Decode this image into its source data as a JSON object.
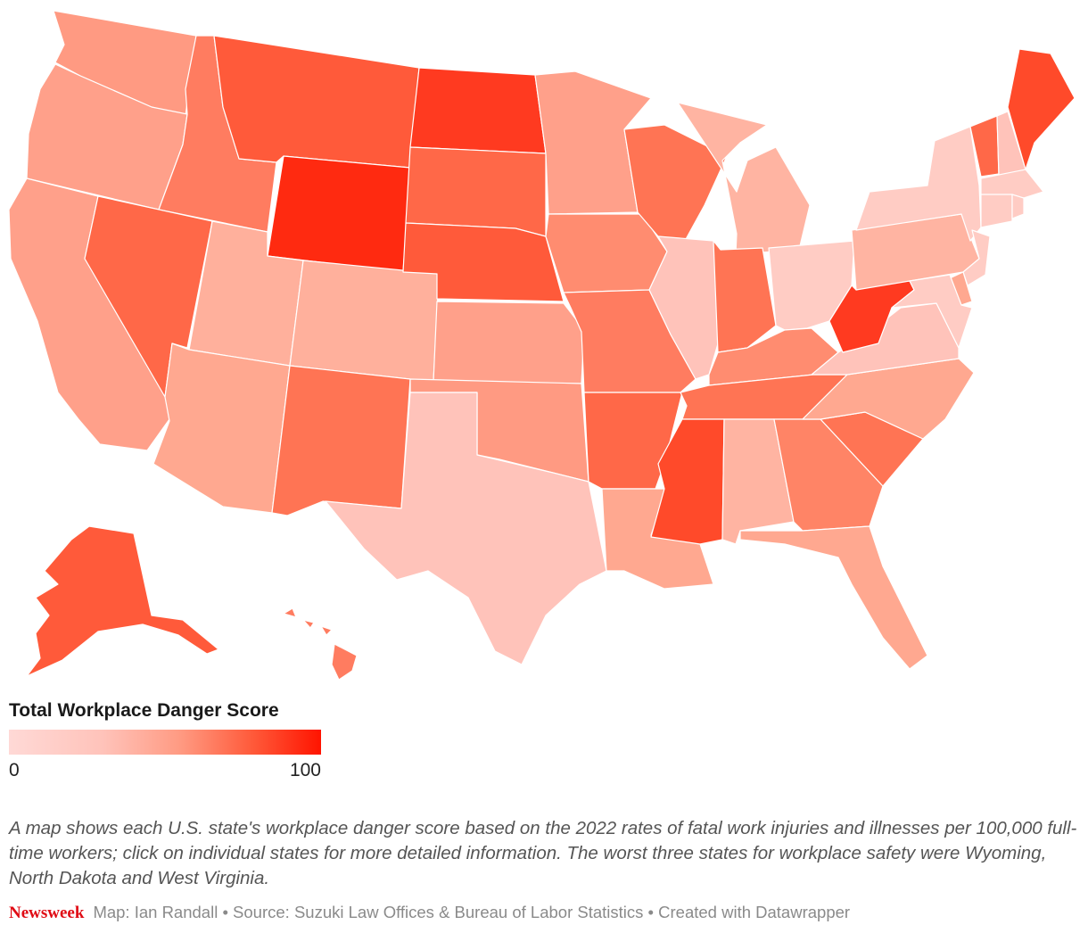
{
  "legend": {
    "title": "Total Workplace Danger Score",
    "min_label": "0",
    "max_label": "100",
    "low_color": "#ffd9d6",
    "high_color": "#ff1400"
  },
  "caption": "A map shows each U.S. state's workplace danger score based on the 2022 rates of fatal work injuries and illnesses per 100,000 full-time workers; click on individual states for more detailed information. The worst three states for workplace safety were Wyoming, North Dakota and West Virginia.",
  "footer": {
    "brand": "Newsweek",
    "credits": "Map: Ian Randall • Source: Suzuki Law Offices & Bureau of Labor Statistics • Created with Datawrapper"
  },
  "states": [
    {
      "id": "WA",
      "color": "#ff9a82"
    },
    {
      "id": "OR",
      "color": "#ffa08a"
    },
    {
      "id": "CA",
      "color": "#ffa08a"
    },
    {
      "id": "ID",
      "color": "#ff7c60"
    },
    {
      "id": "NV",
      "color": "#ff6848"
    },
    {
      "id": "MT",
      "color": "#ff5a3a"
    },
    {
      "id": "WY",
      "color": "#ff2a10"
    },
    {
      "id": "UT",
      "color": "#ffb09c"
    },
    {
      "id": "AZ",
      "color": "#ffa890"
    },
    {
      "id": "CO",
      "color": "#ffb09c"
    },
    {
      "id": "NM",
      "color": "#ff7454"
    },
    {
      "id": "ND",
      "color": "#ff3a20"
    },
    {
      "id": "SD",
      "color": "#ff6848"
    },
    {
      "id": "NE",
      "color": "#ff5a3a"
    },
    {
      "id": "KS",
      "color": "#ffa08a"
    },
    {
      "id": "OK",
      "color": "#ff9a82"
    },
    {
      "id": "TX",
      "color": "#ffc3ba"
    },
    {
      "id": "MN",
      "color": "#ffa08a"
    },
    {
      "id": "IA",
      "color": "#ff8c70"
    },
    {
      "id": "MO",
      "color": "#ff7c60"
    },
    {
      "id": "AR",
      "color": "#ff6848"
    },
    {
      "id": "LA",
      "color": "#ffa890"
    },
    {
      "id": "WI",
      "color": "#ff7454"
    },
    {
      "id": "IL",
      "color": "#ffc3ba"
    },
    {
      "id": "MI",
      "color": "#ffb4a2"
    },
    {
      "id": "IN",
      "color": "#ff7454"
    },
    {
      "id": "OH",
      "color": "#ffccc4"
    },
    {
      "id": "KY",
      "color": "#ff8c70"
    },
    {
      "id": "TN",
      "color": "#ff7454"
    },
    {
      "id": "MS",
      "color": "#ff4a2a"
    },
    {
      "id": "AL",
      "color": "#ffb4a2"
    },
    {
      "id": "GA",
      "color": "#ff8466"
    },
    {
      "id": "FL",
      "color": "#ffa890"
    },
    {
      "id": "SC",
      "color": "#ff7454"
    },
    {
      "id": "NC",
      "color": "#ffa890"
    },
    {
      "id": "VA",
      "color": "#ffc3ba"
    },
    {
      "id": "WV",
      "color": "#ff3a20"
    },
    {
      "id": "PA",
      "color": "#ffb4a2"
    },
    {
      "id": "NY",
      "color": "#ffccc4"
    },
    {
      "id": "VT",
      "color": "#ff6848"
    },
    {
      "id": "NH",
      "color": "#ffc3ba"
    },
    {
      "id": "ME",
      "color": "#ff4a2a"
    },
    {
      "id": "MA",
      "color": "#ffccc4"
    },
    {
      "id": "CT",
      "color": "#ffccc4"
    },
    {
      "id": "RI",
      "color": "#ffccc4"
    },
    {
      "id": "NJ",
      "color": "#ffccc4"
    },
    {
      "id": "DE",
      "color": "#ffa890"
    },
    {
      "id": "MD",
      "color": "#ffccc4"
    },
    {
      "id": "AK",
      "color": "#ff5a3a"
    },
    {
      "id": "HI",
      "color": "#ff7c60"
    }
  ]
}
